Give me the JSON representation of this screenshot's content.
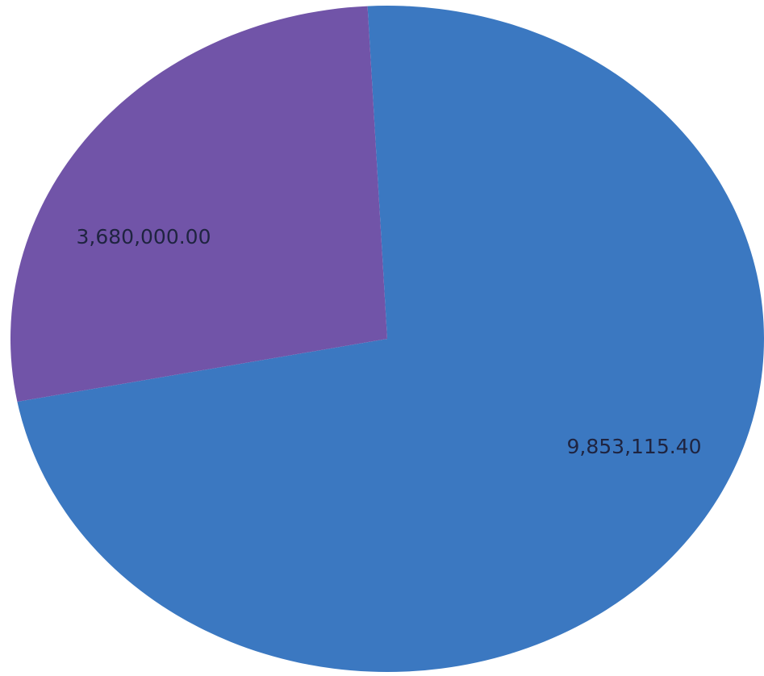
{
  "chart_data": {
    "type": "pie",
    "title": "",
    "labels_shown": "values",
    "start_angle_deg": 93,
    "direction": "clockwise",
    "slices": [
      {
        "value": 9853115.4,
        "label": "9,853,115.40",
        "color": "#3b78c1"
      },
      {
        "value": 3680000.0,
        "label": "3,680,000.00",
        "color": "#7154a8"
      }
    ],
    "legend": "none"
  }
}
